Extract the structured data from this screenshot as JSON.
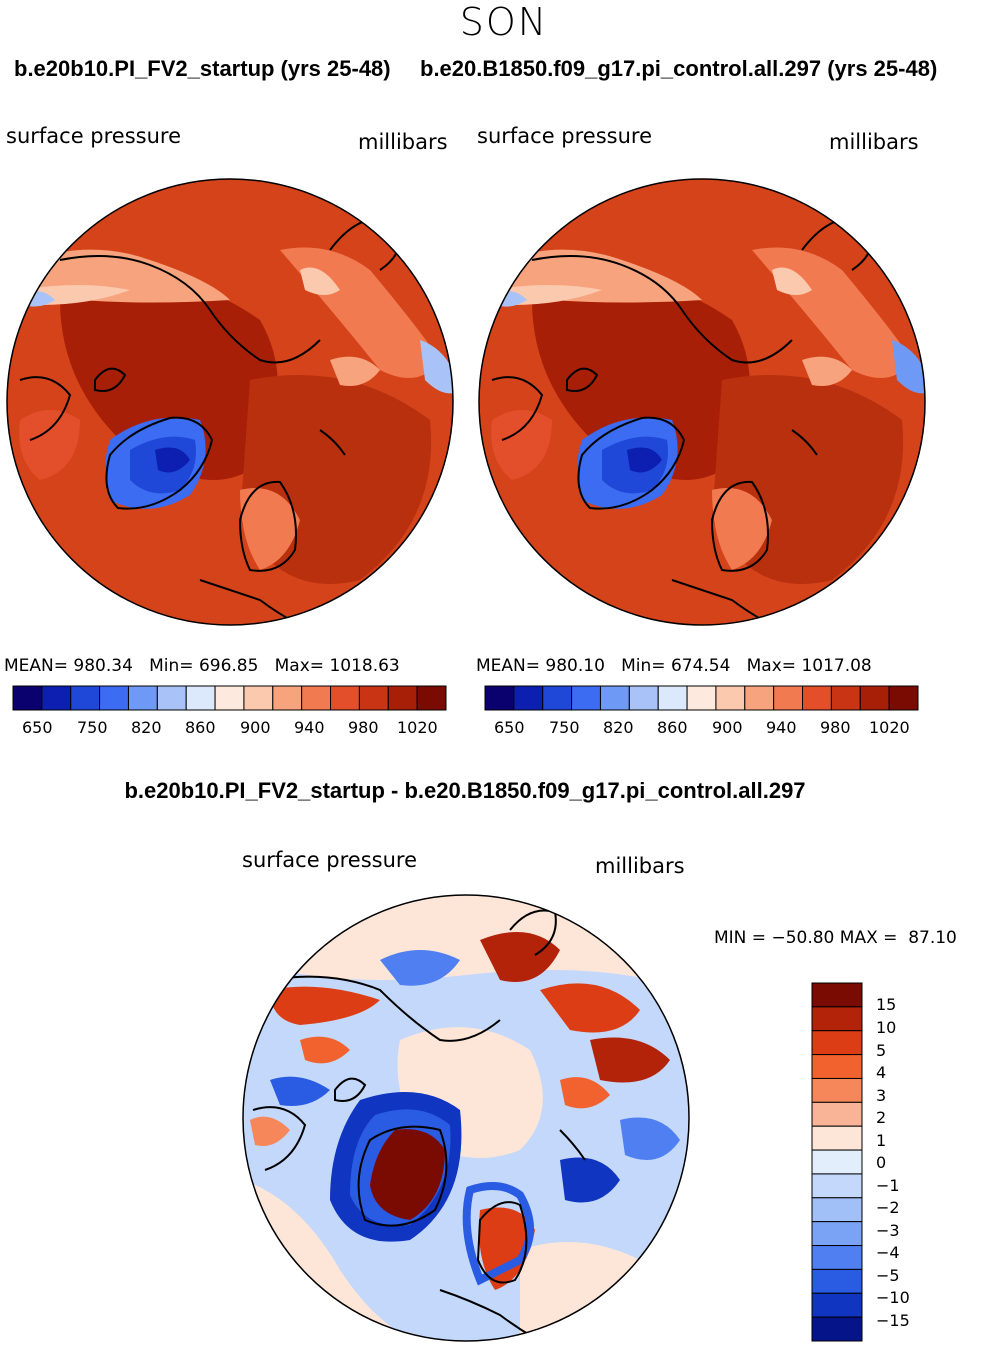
{
  "season": "SON",
  "panels": [
    {
      "case": "b.e20b10.PI_FV2_startup (yrs 25-48)",
      "variable": "surface pressure",
      "units": "millibars",
      "stats": {
        "mean_label": "MEAN=",
        "mean": "980.34",
        "min_label": "Min=",
        "min": "696.85",
        "max_label": "Max=",
        "max": "1018.63"
      },
      "colorbar_ticks": [
        "650",
        "750",
        "820",
        "860",
        "900",
        "940",
        "980",
        "1020"
      ]
    },
    {
      "case": "b.e20.B1850.f09_g17.pi_control.all.297 (yrs 25-48)",
      "variable": "surface pressure",
      "units": "millibars",
      "stats": {
        "mean_label": "MEAN=",
        "mean": "980.10",
        "min_label": "Min=",
        "min": "674.54",
        "max_label": "Max=",
        "max": "1017.08"
      },
      "colorbar_ticks": [
        "650",
        "750",
        "820",
        "860",
        "900",
        "940",
        "980",
        "1020"
      ]
    }
  ],
  "difference": {
    "title": "b.e20b10.PI_FV2_startup - b.e20.B1850.f09_g17.pi_control.all.297",
    "variable": "surface pressure",
    "units": "millibars",
    "min_label": "MIN =",
    "min": "−50.80",
    "max_label": "MAX =",
    "max": "87.10",
    "colorbar_ticks": [
      "15",
      "10",
      "5",
      "4",
      "3",
      "2",
      "1",
      "0",
      "−1",
      "−2",
      "−3",
      "−4",
      "−5",
      "−10",
      "−15"
    ]
  },
  "colors": {
    "abs_scale": [
      "#0a006e",
      "#0c1fb0",
      "#1f48d8",
      "#3b6cf2",
      "#6e99f5",
      "#a9c3f8",
      "#dce8fb",
      "#fde9dd",
      "#fbc9ae",
      "#f7a37d",
      "#f17a50",
      "#e24f2a",
      "#c93514",
      "#a81f08",
      "#7a0b03"
    ],
    "diff_scale": [
      "#7a0b03",
      "#b3230a",
      "#dd3d14",
      "#f2622f",
      "#f6875a",
      "#f9b497",
      "#fde6d8",
      "#e2eefc",
      "#c3d8fb",
      "#a1c0f8",
      "#7ba3f5",
      "#4f7ff0",
      "#2a5be3",
      "#1035c1",
      "#06148a"
    ],
    "map_fill": "#d4431a",
    "map_dark": "#b22a0a"
  }
}
